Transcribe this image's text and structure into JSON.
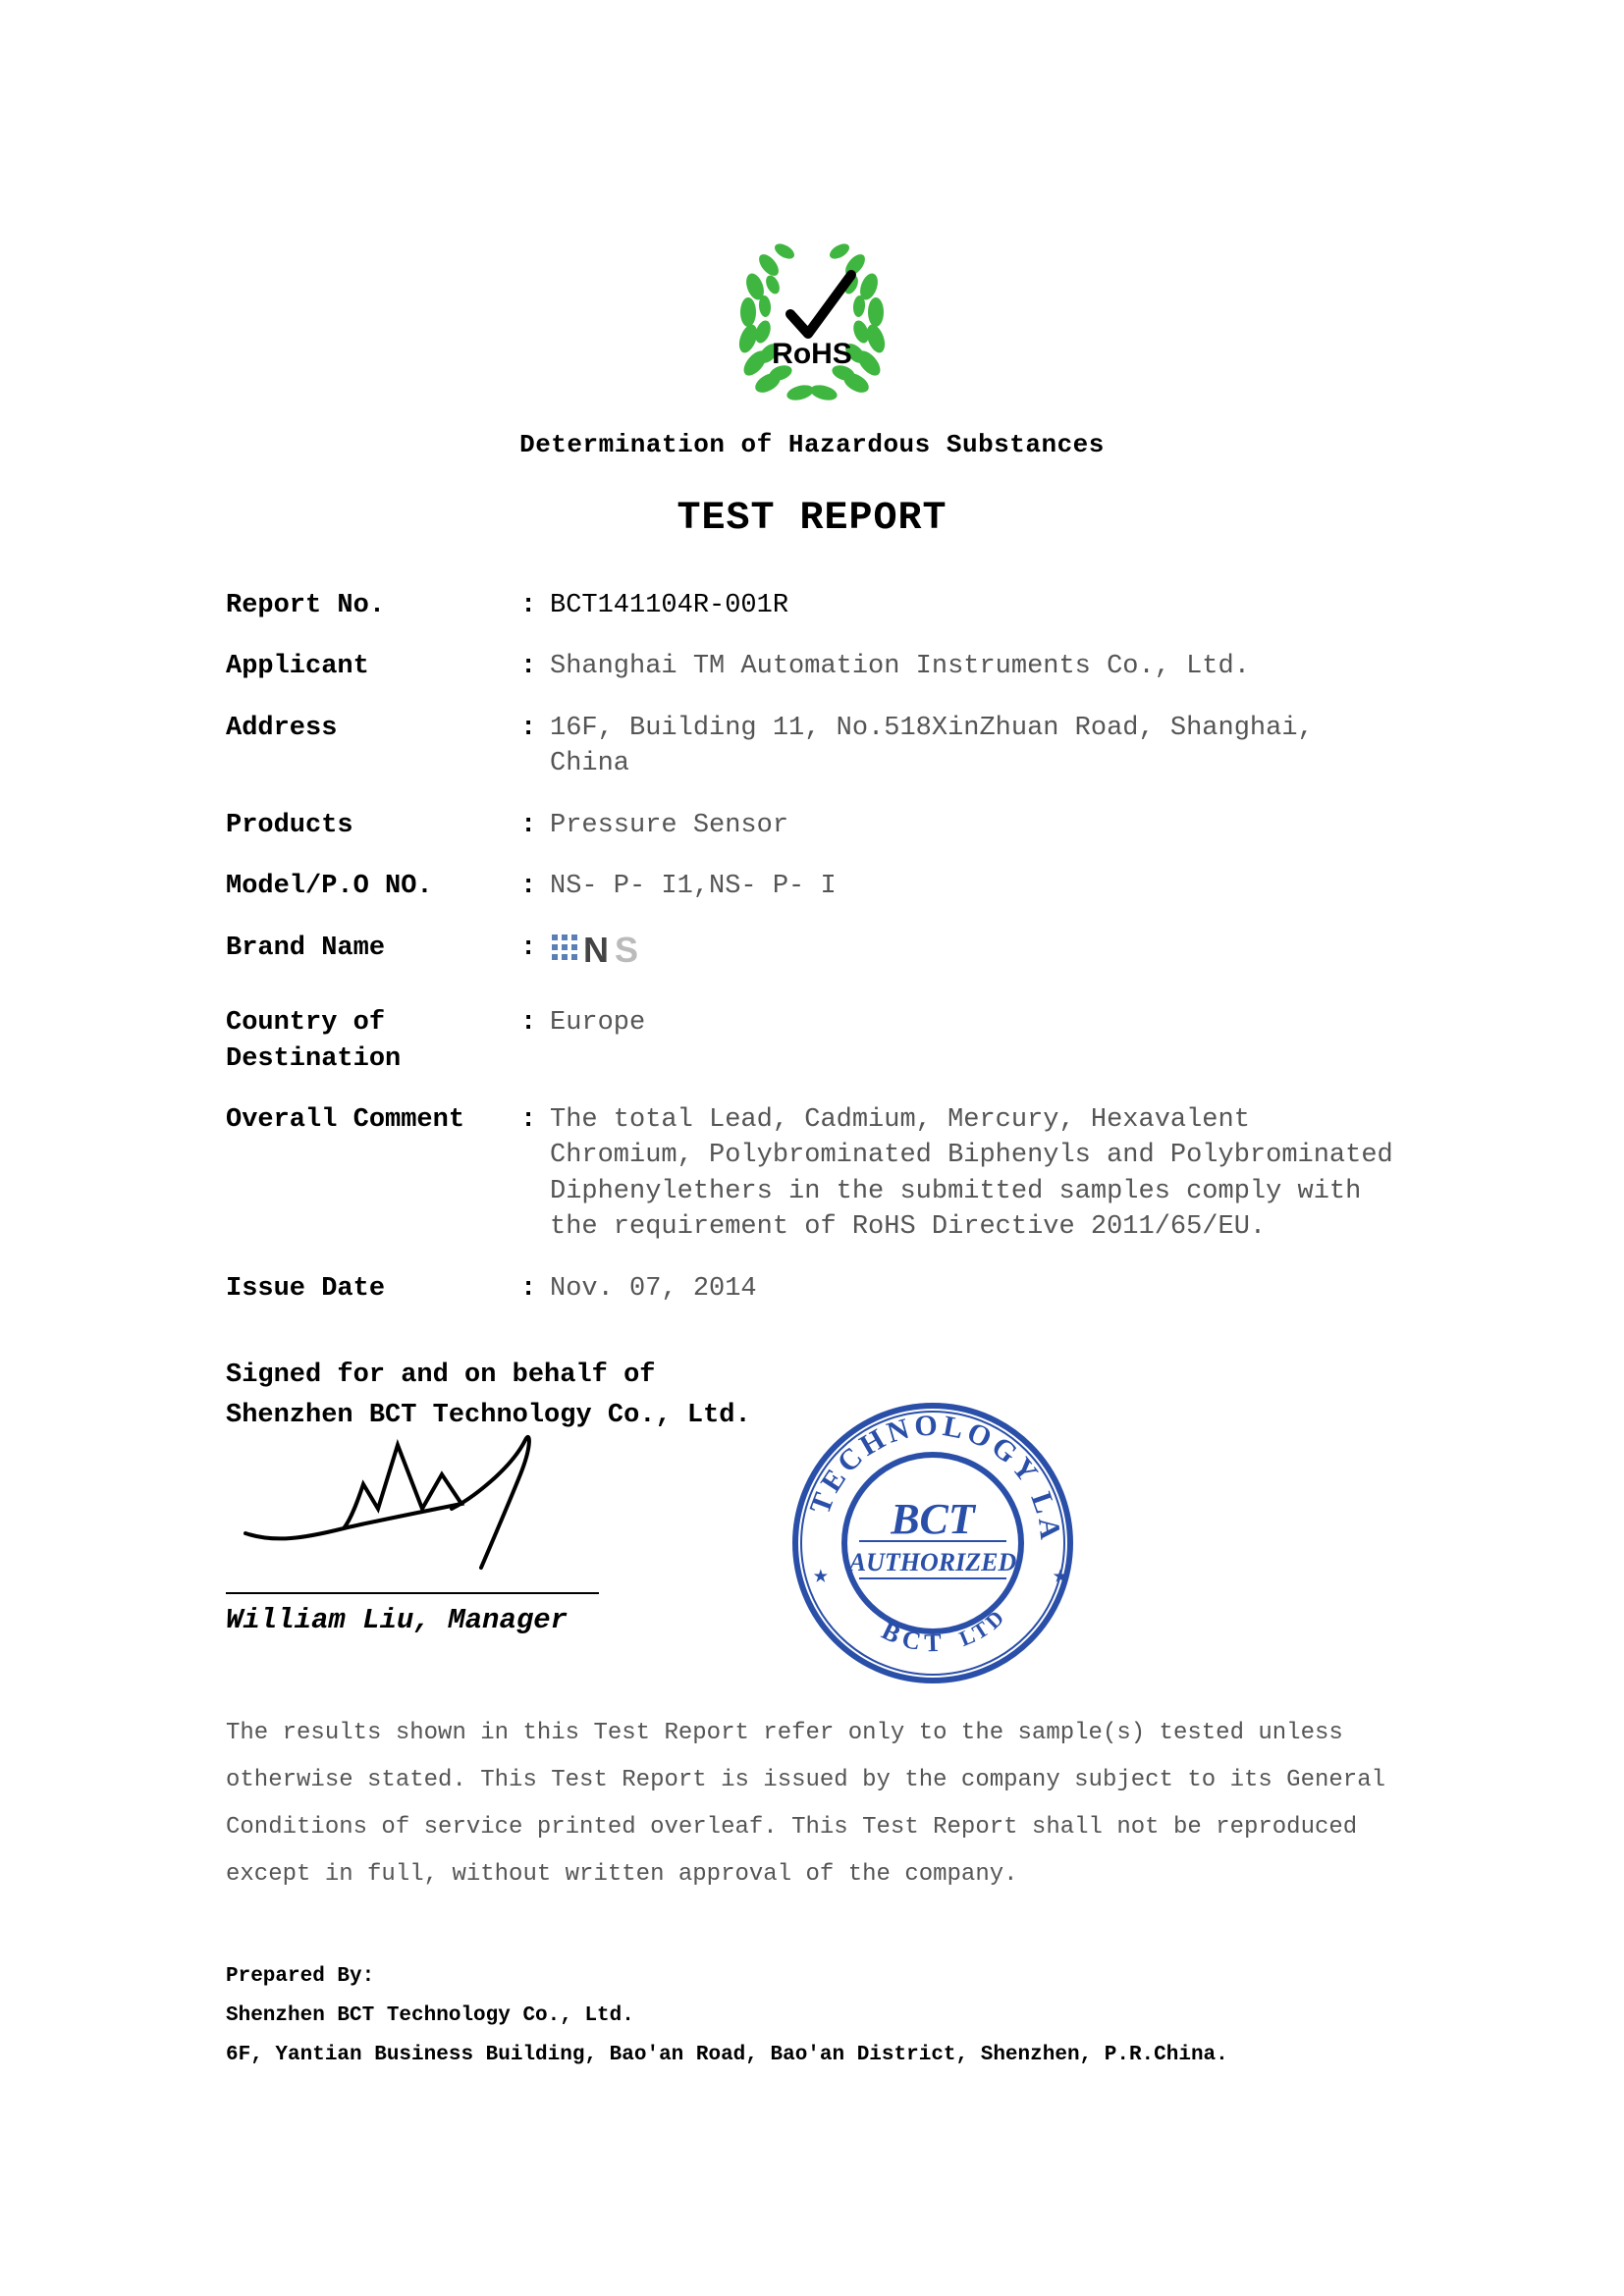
{
  "header": {
    "rohs_text": "RoHS",
    "subtitle": "Determination of Hazardous Substances",
    "title": "TEST REPORT",
    "logo": {
      "laurel_color": "#3fb63f",
      "check_color": "#000000",
      "text_color": "#000000"
    }
  },
  "fields": [
    {
      "label": "Report No.",
      "value": "BCT141104R-001R",
      "strong": true
    },
    {
      "label": "Applicant",
      "value": "Shanghai TM Automation Instruments Co., Ltd."
    },
    {
      "label": "Address",
      "value": "16F, Building 11, No.518XinZhuan Road, Shanghai, China"
    },
    {
      "label": "Products",
      "value": "Pressure Sensor"
    },
    {
      "label": "Model/P.O NO.",
      "value": "NS- P- I1,NS- P- I"
    },
    {
      "label": "Brand Name",
      "value": "",
      "brand": true
    },
    {
      "label": "Country of Destination",
      "value": "Europe"
    },
    {
      "label": "Overall Comment",
      "value": "The total Lead, Cadmium, Mercury, Hexavalent Chromium, Polybrominated Biphenyls and Polybrominated Diphenylethers in the submitted samples comply with the requirement of RoHS Directive 2011/65/EU."
    },
    {
      "label": "Issue Date",
      "value": "Nov. 07, 2014"
    }
  ],
  "brand": {
    "text_n": "N",
    "text_s": "S",
    "dots_color": "#5a7fb5",
    "n_color": "#444444",
    "s_color": "#bbbbbb"
  },
  "signature": {
    "signed_for1": "Signed for and on behalf of",
    "signed_for2": "Shenzhen BCT Technology Co., Ltd.",
    "name_line": "William Liu, Manager",
    "ink_color": "#000000"
  },
  "stamp": {
    "outer_text_top": "TECHNOLOGY LABORATORY",
    "outer_text_bottom": "BCT",
    "center_top": "BCT",
    "center_mid": "AUTHORIZED",
    "ltd": "LTD",
    "color": "#2a4fa8",
    "inner_bg": "#ffffff"
  },
  "disclaimer": "The results shown in this Test Report refer only to the sample(s) tested unless otherwise stated. This Test Report is issued by the company subject to its General Conditions of service printed overleaf. This Test Report shall not be reproduced except in full, without written approval of the company.",
  "prepared": {
    "heading": "Prepared By:",
    "company": "Shenzhen BCT Technology Co., Ltd.",
    "address": "6F, Yantian Business Building, Bao'an Road, Bao'an District, Shenzhen, P.R.China."
  }
}
